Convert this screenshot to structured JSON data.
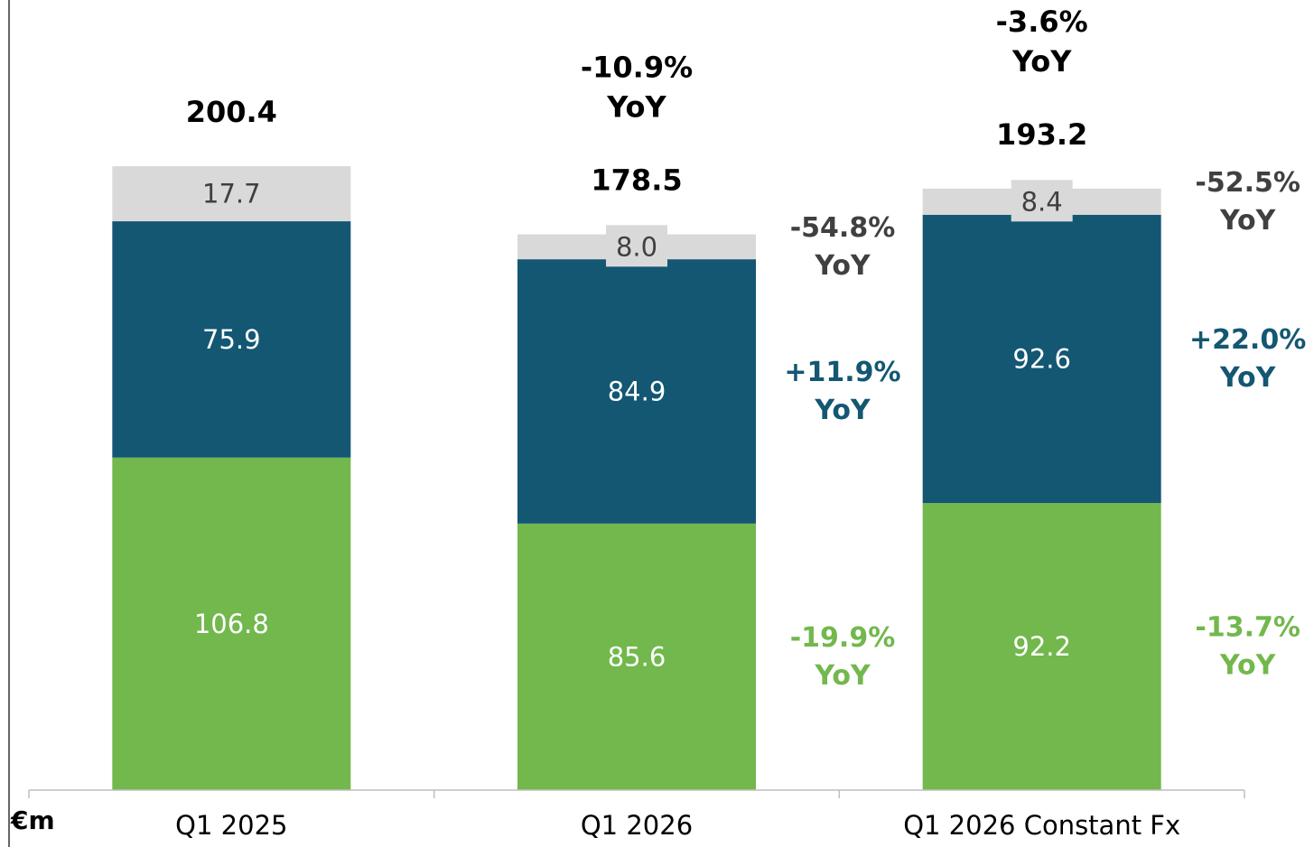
{
  "chart_data": {
    "type": "stacked_bar",
    "unit_label": "€m",
    "categories": [
      "Q1 2025",
      "Q1 2026",
      "Q1 2026 Constant Fx"
    ],
    "ylim": [
      0,
      250
    ],
    "yoy_label": "YoY",
    "totals": [
      200.4,
      178.5,
      193.2
    ],
    "total_yoy": [
      null,
      "-10.9%",
      "-3.6%"
    ],
    "series": [
      {
        "color": "#72b84c",
        "values": [
          106.8,
          85.6,
          92.2
        ],
        "yoy": [
          null,
          "-19.9%",
          "-13.7%"
        ]
      },
      {
        "color": "#135773",
        "values": [
          75.9,
          84.9,
          92.6
        ],
        "yoy": [
          null,
          "+11.9%",
          "+22.0%"
        ]
      },
      {
        "color": "#d9d9d9",
        "values": [
          17.7,
          8.0,
          8.4
        ],
        "value_labels": [
          "17.7",
          "8.0",
          "8.4"
        ],
        "yoy": [
          null,
          "-54.8%",
          "-52.5%"
        ]
      }
    ]
  }
}
